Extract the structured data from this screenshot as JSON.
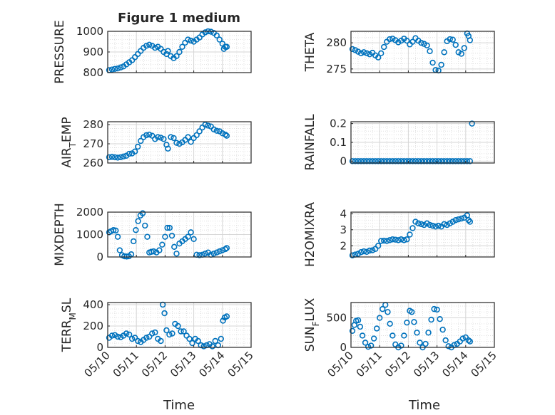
{
  "figure": {
    "title": "Figure 1 medium",
    "x_label": "Time",
    "x_ticks": [
      "05/10",
      "05/11",
      "05/12",
      "05/13",
      "05/14",
      "05/15"
    ],
    "marker_color": "#0072BD"
  },
  "chart_data": [
    {
      "type": "scatter",
      "ylabel": "PRESSURE",
      "ylim": [
        800,
        1000
      ],
      "yticks": [
        800,
        900,
        1000
      ],
      "xlim": [
        "05/10",
        "05/15"
      ],
      "grid": true,
      "x": [
        0.05,
        0.15,
        0.25,
        0.35,
        0.45,
        0.55,
        0.65,
        0.75,
        0.85,
        0.95,
        1.05,
        1.15,
        1.25,
        1.35,
        1.45,
        1.55,
        1.65,
        1.75,
        1.85,
        1.95,
        2.05,
        2.1,
        2.2,
        2.3,
        2.4,
        2.5,
        2.6,
        2.7,
        2.8,
        2.9,
        3.0,
        3.1,
        3.2,
        3.3,
        3.4,
        3.5,
        3.6,
        3.7,
        3.8,
        3.9,
        4.0,
        4.05,
        4.1,
        4.15
      ],
      "y": [
        812,
        815,
        818,
        820,
        825,
        830,
        840,
        850,
        860,
        875,
        890,
        905,
        920,
        930,
        935,
        930,
        920,
        925,
        915,
        900,
        890,
        905,
        880,
        870,
        880,
        900,
        925,
        945,
        960,
        955,
        950,
        960,
        970,
        985,
        995,
        1000,
        998,
        992,
        980,
        960,
        940,
        915,
        925,
        925
      ]
    },
    {
      "type": "scatter",
      "ylabel": "THETA",
      "ylim": [
        274.3,
        282.2
      ],
      "yticks": [
        275,
        280
      ],
      "xlim": [
        "05/10",
        "05/15"
      ],
      "grid": true,
      "x": [
        0.05,
        0.15,
        0.25,
        0.35,
        0.45,
        0.55,
        0.65,
        0.75,
        0.85,
        0.95,
        1.05,
        1.15,
        1.25,
        1.35,
        1.45,
        1.55,
        1.65,
        1.75,
        1.85,
        1.95,
        2.05,
        2.15,
        2.25,
        2.35,
        2.45,
        2.55,
        2.65,
        2.75,
        2.85,
        2.95,
        3.05,
        3.15,
        3.25,
        3.35,
        3.45,
        3.55,
        3.65,
        3.75,
        3.85,
        3.95,
        4.05,
        4.1,
        4.15
      ],
      "y": [
        278.8,
        278.6,
        278.3,
        278.0,
        278.2,
        278.0,
        277.8,
        278.1,
        277.6,
        277.2,
        278.0,
        279.2,
        280.2,
        280.7,
        280.8,
        280.5,
        280.1,
        280.4,
        280.8,
        280.4,
        279.7,
        280.2,
        280.9,
        280.4,
        280.0,
        279.8,
        279.5,
        278.4,
        276.2,
        274.8,
        274.7,
        275.8,
        278.2,
        280.3,
        280.7,
        280.6,
        279.6,
        278.2,
        277.9,
        279.0,
        281.8,
        281.3,
        280.5
      ]
    },
    {
      "type": "scatter",
      "ylabel": "AIR_TEMP",
      "ylim": [
        260,
        281.5
      ],
      "yticks": [
        260,
        270,
        280
      ],
      "xlim": [
        "05/10",
        "05/15"
      ],
      "grid": true,
      "x": [
        0.05,
        0.15,
        0.25,
        0.35,
        0.45,
        0.55,
        0.65,
        0.75,
        0.85,
        0.95,
        1.05,
        1.15,
        1.25,
        1.35,
        1.45,
        1.55,
        1.65,
        1.75,
        1.85,
        1.95,
        2.05,
        2.1,
        2.2,
        2.3,
        2.4,
        2.5,
        2.6,
        2.7,
        2.8,
        2.9,
        3.0,
        3.1,
        3.2,
        3.3,
        3.4,
        3.5,
        3.6,
        3.7,
        3.8,
        3.9,
        4.0,
        4.1,
        4.15
      ],
      "y": [
        263.0,
        263.2,
        263.0,
        262.8,
        263.0,
        263.4,
        263.8,
        264.8,
        265.0,
        266.0,
        268.5,
        271.5,
        273.5,
        274.5,
        274.8,
        274.2,
        272.5,
        273.5,
        273.2,
        272.5,
        269.5,
        267.5,
        273.5,
        273.0,
        270.5,
        270.0,
        270.8,
        272.0,
        273.5,
        271.0,
        273.0,
        274.5,
        276.5,
        278.5,
        280.0,
        279.5,
        279.0,
        277.5,
        276.8,
        276.5,
        275.5,
        274.8,
        274.2
      ]
    },
    {
      "type": "scatter",
      "ylabel": "RAINFALL",
      "ylim": [
        -0.01,
        0.21
      ],
      "yticks": [
        0,
        0.1,
        0.2
      ],
      "xlim": [
        "05/10",
        "05/15"
      ],
      "grid": true,
      "x": [
        0.05,
        0.15,
        0.25,
        0.35,
        0.45,
        0.55,
        0.65,
        0.75,
        0.85,
        0.95,
        1.05,
        1.15,
        1.25,
        1.35,
        1.45,
        1.55,
        1.65,
        1.75,
        1.85,
        1.95,
        2.05,
        2.15,
        2.25,
        2.35,
        2.45,
        2.55,
        2.65,
        2.75,
        2.85,
        2.95,
        3.05,
        3.15,
        3.25,
        3.35,
        3.45,
        3.55,
        3.65,
        3.75,
        3.85,
        3.95,
        4.05,
        4.15,
        4.22
      ],
      "y": [
        0,
        0,
        0,
        0,
        0,
        0,
        0,
        0,
        0,
        0,
        0,
        0,
        0,
        0,
        0,
        0,
        0,
        0,
        0,
        0,
        0,
        0,
        0,
        0,
        0,
        0,
        0,
        0,
        0,
        0,
        0,
        0,
        0,
        0,
        0,
        0,
        0,
        0,
        0,
        0,
        0,
        0,
        0.2
      ]
    },
    {
      "type": "scatter",
      "ylabel": "MIXDEPTH",
      "ylim": [
        0,
        2000
      ],
      "yticks": [
        0,
        1000,
        2000
      ],
      "xlim": [
        "05/10",
        "05/15"
      ],
      "grid": true,
      "x": [
        0.05,
        0.12,
        0.2,
        0.28,
        0.35,
        0.42,
        0.5,
        0.58,
        0.66,
        0.74,
        0.82,
        0.9,
        0.98,
        1.06,
        1.14,
        1.22,
        1.3,
        1.38,
        1.45,
        1.52,
        1.6,
        1.7,
        1.8,
        1.9,
        2.0,
        2.08,
        2.16,
        2.24,
        2.32,
        2.4,
        2.5,
        2.6,
        2.7,
        2.8,
        2.9,
        3.0,
        3.1,
        3.2,
        3.3,
        3.4,
        3.5,
        3.6,
        3.7,
        3.8,
        3.9,
        4.0,
        4.1,
        4.15
      ],
      "y": [
        1100,
        1150,
        1200,
        1180,
        900,
        300,
        80,
        30,
        20,
        30,
        120,
        700,
        1200,
        1600,
        1850,
        1950,
        1400,
        900,
        200,
        230,
        250,
        200,
        300,
        550,
        900,
        1300,
        1300,
        950,
        450,
        150,
        600,
        700,
        800,
        900,
        1100,
        800,
        100,
        80,
        100,
        150,
        200,
        100,
        150,
        200,
        250,
        300,
        350,
        400
      ]
    },
    {
      "type": "scatter",
      "ylabel": "H2OMIXRA",
      "ylim": [
        1.3,
        4.1
      ],
      "yticks": [
        2,
        3,
        4
      ],
      "xlim": [
        "05/10",
        "05/15"
      ],
      "grid": true,
      "x": [
        0.05,
        0.15,
        0.25,
        0.35,
        0.45,
        0.55,
        0.65,
        0.75,
        0.85,
        0.95,
        1.05,
        1.15,
        1.25,
        1.35,
        1.45,
        1.55,
        1.65,
        1.75,
        1.85,
        1.95,
        2.05,
        2.15,
        2.25,
        2.35,
        2.45,
        2.55,
        2.65,
        2.75,
        2.85,
        2.95,
        3.05,
        3.15,
        3.25,
        3.35,
        3.45,
        3.55,
        3.65,
        3.75,
        3.85,
        3.95,
        4.05,
        4.1,
        4.15
      ],
      "y": [
        1.4,
        1.45,
        1.5,
        1.6,
        1.65,
        1.62,
        1.7,
        1.72,
        1.8,
        2.0,
        2.3,
        2.32,
        2.3,
        2.35,
        2.4,
        2.38,
        2.35,
        2.4,
        2.35,
        2.4,
        2.7,
        3.1,
        3.5,
        3.4,
        3.35,
        3.3,
        3.4,
        3.3,
        3.25,
        3.2,
        3.25,
        3.2,
        3.35,
        3.3,
        3.4,
        3.5,
        3.6,
        3.65,
        3.7,
        3.75,
        3.9,
        3.6,
        3.5
      ]
    },
    {
      "type": "scatter",
      "ylabel": "TERR_MSL",
      "ylim": [
        0,
        420
      ],
      "yticks": [
        0,
        200,
        400
      ],
      "xlim": [
        "05/10",
        "05/15"
      ],
      "grid": true,
      "x": [
        0.05,
        0.15,
        0.25,
        0.35,
        0.45,
        0.55,
        0.65,
        0.75,
        0.85,
        0.95,
        1.05,
        1.15,
        1.25,
        1.35,
        1.45,
        1.55,
        1.65,
        1.75,
        1.85,
        1.92,
        1.98,
        2.05,
        2.15,
        2.25,
        2.35,
        2.45,
        2.55,
        2.65,
        2.75,
        2.85,
        2.95,
        3.05,
        3.15,
        3.25,
        3.35,
        3.45,
        3.55,
        3.65,
        3.75,
        3.85,
        3.95,
        4.02,
        4.08,
        4.15
      ],
      "y": [
        90,
        110,
        115,
        100,
        95,
        110,
        130,
        120,
        80,
        90,
        60,
        50,
        70,
        90,
        100,
        130,
        140,
        80,
        60,
        400,
        320,
        160,
        120,
        130,
        220,
        200,
        150,
        150,
        110,
        80,
        40,
        80,
        60,
        20,
        10,
        20,
        30,
        10,
        60,
        20,
        80,
        250,
        280,
        290
      ]
    },
    {
      "type": "scatter",
      "ylabel": "SUN_FLUX",
      "ylim": [
        0,
        760
      ],
      "yticks": [
        0,
        500
      ],
      "xlim": [
        "05/10",
        "05/15"
      ],
      "grid": true,
      "x": [
        0.05,
        0.12,
        0.18,
        0.25,
        0.32,
        0.4,
        0.5,
        0.6,
        0.7,
        0.8,
        0.9,
        1.0,
        1.1,
        1.2,
        1.28,
        1.36,
        1.45,
        1.55,
        1.65,
        1.75,
        1.85,
        1.95,
        2.05,
        2.12,
        2.2,
        2.3,
        2.4,
        2.5,
        2.6,
        2.7,
        2.8,
        2.9,
        3.0,
        3.1,
        3.2,
        3.3,
        3.4,
        3.5,
        3.6,
        3.7,
        3.8,
        3.9,
        4.0,
        4.1,
        4.15
      ],
      "y": [
        280,
        380,
        450,
        460,
        350,
        200,
        80,
        10,
        30,
        150,
        320,
        500,
        650,
        720,
        600,
        400,
        200,
        50,
        0,
        30,
        200,
        420,
        620,
        600,
        430,
        250,
        80,
        0,
        60,
        250,
        470,
        650,
        640,
        480,
        300,
        120,
        20,
        0,
        40,
        60,
        100,
        150,
        170,
        120,
        100
      ]
    }
  ]
}
